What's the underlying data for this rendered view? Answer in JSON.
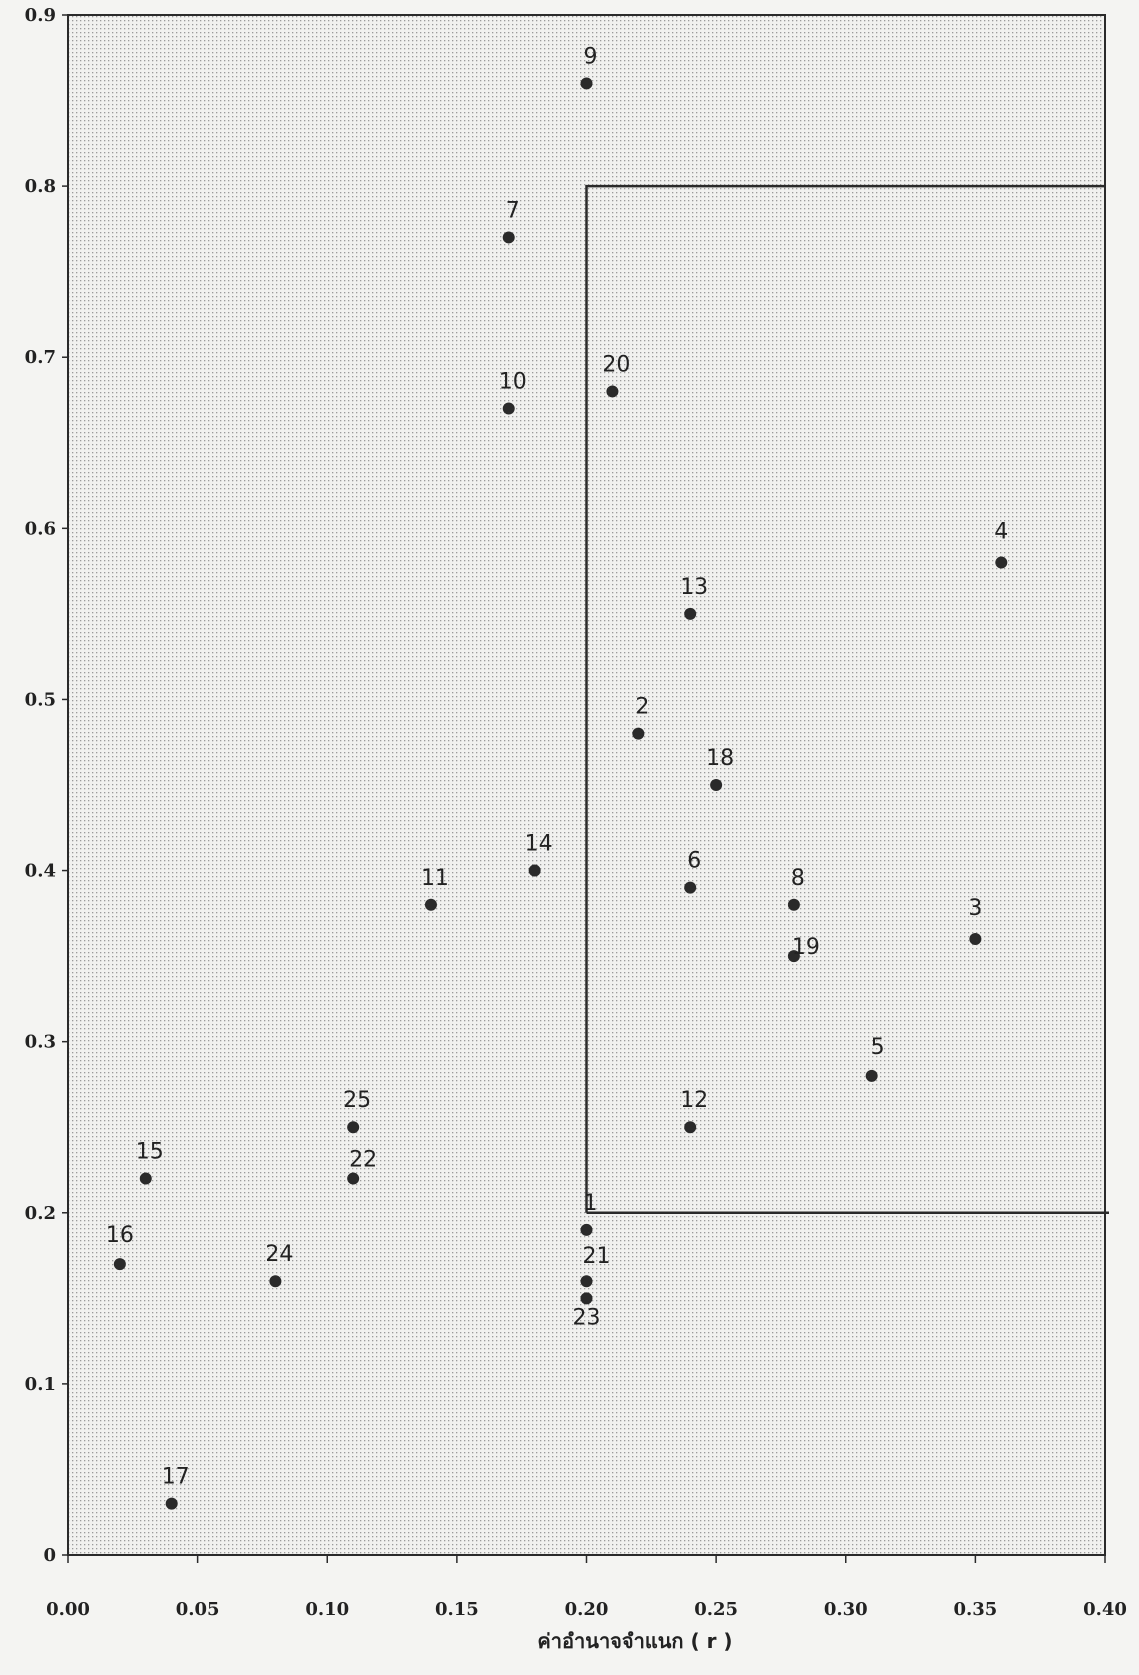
{
  "chart_data": {
    "type": "scatter",
    "xlabel": "ค่าอำนาจจำแนก ( r )",
    "ylabel": "",
    "xlim": [
      0,
      0.4
    ],
    "ylim": [
      0,
      0.9
    ],
    "x_ticks": [
      "0.00",
      "0.05",
      "0.10",
      "0.15",
      "0.20",
      "0.25",
      "0.30",
      "0.35",
      "0.40"
    ],
    "y_ticks": [
      "0",
      "0.1",
      "0.2",
      "0.3",
      "0.4",
      "0.5",
      "0.6",
      "0.7",
      "0.8",
      "0.9"
    ],
    "grid": "dotted",
    "marker_color": "#2a2a2a",
    "points": [
      {
        "label": "1",
        "x": 0.2,
        "y": 0.19
      },
      {
        "label": "2",
        "x": 0.22,
        "y": 0.48
      },
      {
        "label": "3",
        "x": 0.35,
        "y": 0.36
      },
      {
        "label": "4",
        "x": 0.36,
        "y": 0.58
      },
      {
        "label": "5",
        "x": 0.31,
        "y": 0.28
      },
      {
        "label": "6",
        "x": 0.24,
        "y": 0.39
      },
      {
        "label": "7",
        "x": 0.17,
        "y": 0.77
      },
      {
        "label": "8",
        "x": 0.28,
        "y": 0.38
      },
      {
        "label": "9",
        "x": 0.2,
        "y": 0.86
      },
      {
        "label": "10",
        "x": 0.17,
        "y": 0.67
      },
      {
        "label": "11",
        "x": 0.14,
        "y": 0.38
      },
      {
        "label": "12",
        "x": 0.24,
        "y": 0.25
      },
      {
        "label": "13",
        "x": 0.24,
        "y": 0.55
      },
      {
        "label": "14",
        "x": 0.18,
        "y": 0.4
      },
      {
        "label": "15",
        "x": 0.03,
        "y": 0.22
      },
      {
        "label": "16",
        "x": 0.02,
        "y": 0.17
      },
      {
        "label": "17",
        "x": 0.04,
        "y": 0.03
      },
      {
        "label": "18",
        "x": 0.25,
        "y": 0.45
      },
      {
        "label": "19",
        "x": 0.28,
        "y": 0.35
      },
      {
        "label": "20",
        "x": 0.21,
        "y": 0.68
      },
      {
        "label": "21",
        "x": 0.2,
        "y": 0.16
      },
      {
        "label": "22",
        "x": 0.11,
        "y": 0.22
      },
      {
        "label": "23",
        "x": 0.2,
        "y": 0.15
      },
      {
        "label": "24",
        "x": 0.08,
        "y": 0.16
      },
      {
        "label": "25",
        "x": 0.11,
        "y": 0.25
      }
    ],
    "region": {
      "x_min": 0.2,
      "x_max": 0.4,
      "y_min": 0.2,
      "y_max": 0.8
    }
  }
}
